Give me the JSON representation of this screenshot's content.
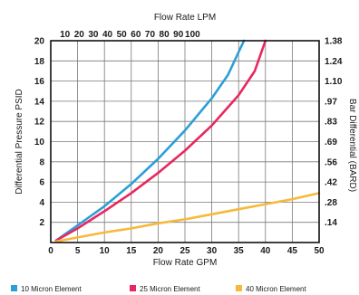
{
  "chart_data": {
    "type": "line",
    "title": "",
    "x_bottom": {
      "label": "Flow Rate GPM",
      "ticks": [
        0,
        5,
        10,
        15,
        20,
        25,
        30,
        35,
        40,
        45,
        50
      ],
      "range": [
        0,
        50
      ]
    },
    "x_top": {
      "label": "Flow Rate LPM",
      "ticks": [
        10,
        20,
        30,
        40,
        50,
        60,
        70,
        80,
        90,
        100
      ],
      "gpm_per_lpm": 0.26417
    },
    "y_left": {
      "label": "Differential Pressure PSID",
      "ticks": [
        2,
        4,
        6,
        8,
        10,
        12,
        14,
        16,
        18,
        20
      ],
      "range": [
        0,
        20
      ]
    },
    "y_right": {
      "label": "Bar Differential (BARD)",
      "ticks": [
        ".14",
        ".28",
        ".42",
        ".56",
        ".69",
        ".83",
        ".97",
        "1.10",
        "1.24",
        "1.38"
      ]
    },
    "grid": true,
    "legend_position": "bottom",
    "series": [
      {
        "name": "10 Micron Element",
        "color": "#2b9fd8",
        "x": [
          1,
          5,
          10,
          15,
          20,
          25,
          30,
          33,
          36
        ],
        "y": [
          0.2,
          1.7,
          3.6,
          5.8,
          8.3,
          11.1,
          14.3,
          16.6,
          20
        ]
      },
      {
        "name": "25 Micron Element",
        "color": "#e8275f",
        "x": [
          1,
          5,
          10,
          15,
          20,
          25,
          30,
          35,
          38,
          40
        ],
        "y": [
          0.2,
          1.4,
          3.1,
          4.9,
          6.9,
          9.1,
          11.6,
          14.6,
          17.0,
          20
        ]
      },
      {
        "name": "40 Micron Element",
        "color": "#f6b93b",
        "x": [
          1,
          5,
          10,
          15,
          20,
          25,
          30,
          35,
          40,
          45,
          50
        ],
        "y": [
          0.1,
          0.5,
          1.0,
          1.4,
          1.9,
          2.3,
          2.8,
          3.3,
          3.8,
          4.3,
          4.9
        ]
      }
    ]
  }
}
